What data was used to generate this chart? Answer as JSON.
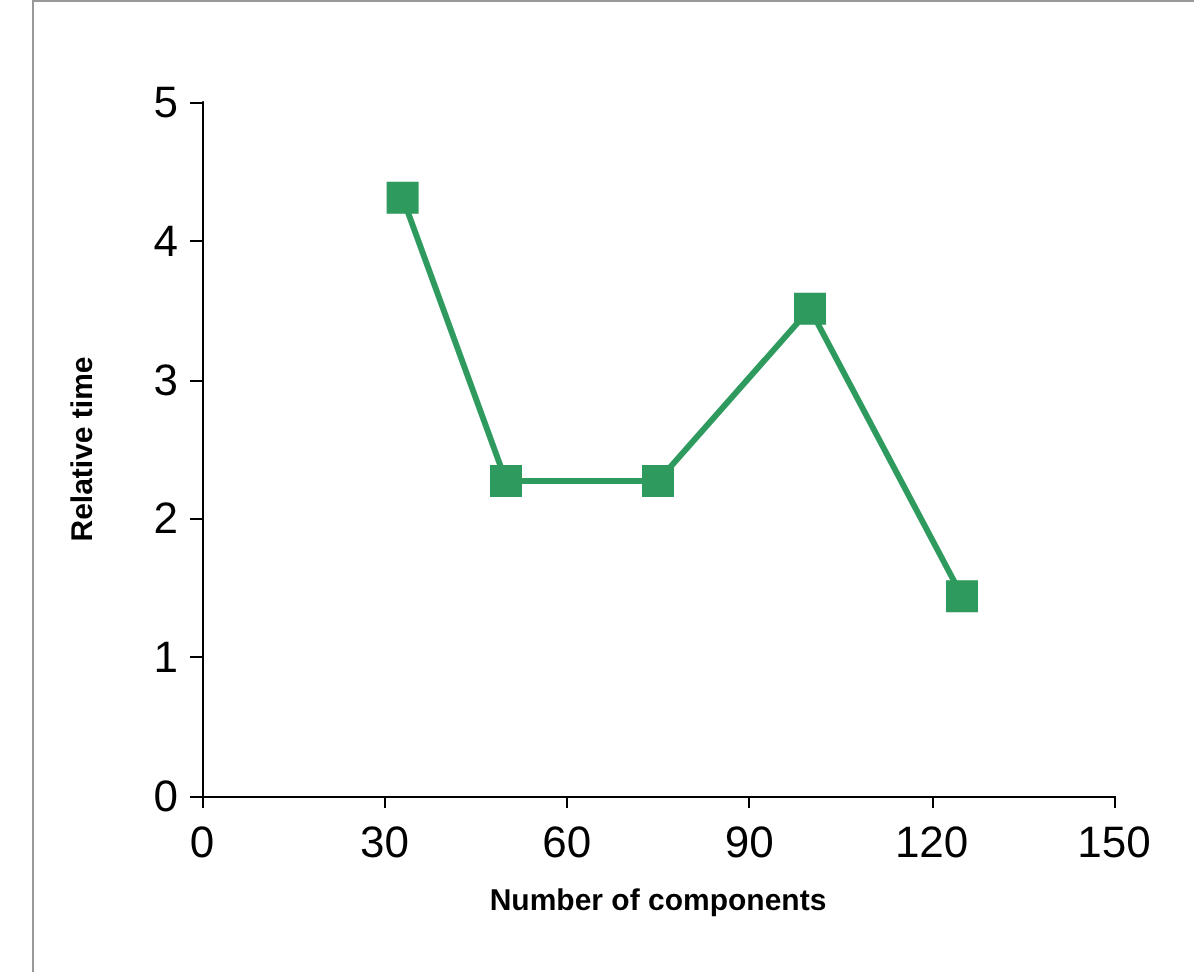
{
  "chart_data": {
    "type": "line",
    "xlabel": "Number of components",
    "ylabel": "Relative time",
    "x": [
      33,
      50,
      75,
      100,
      125
    ],
    "series": [
      {
        "color": "#2e9a5e",
        "values": [
          4.31,
          2.27,
          2.27,
          3.51,
          1.44
        ]
      }
    ],
    "xlim": [
      0,
      150
    ],
    "xticks": [
      0,
      30,
      60,
      90,
      120,
      150
    ],
    "ylim": [
      0,
      5
    ],
    "yticks": [
      0,
      1,
      2,
      3,
      4,
      5
    ],
    "marker": "square",
    "line_style": "solid"
  }
}
